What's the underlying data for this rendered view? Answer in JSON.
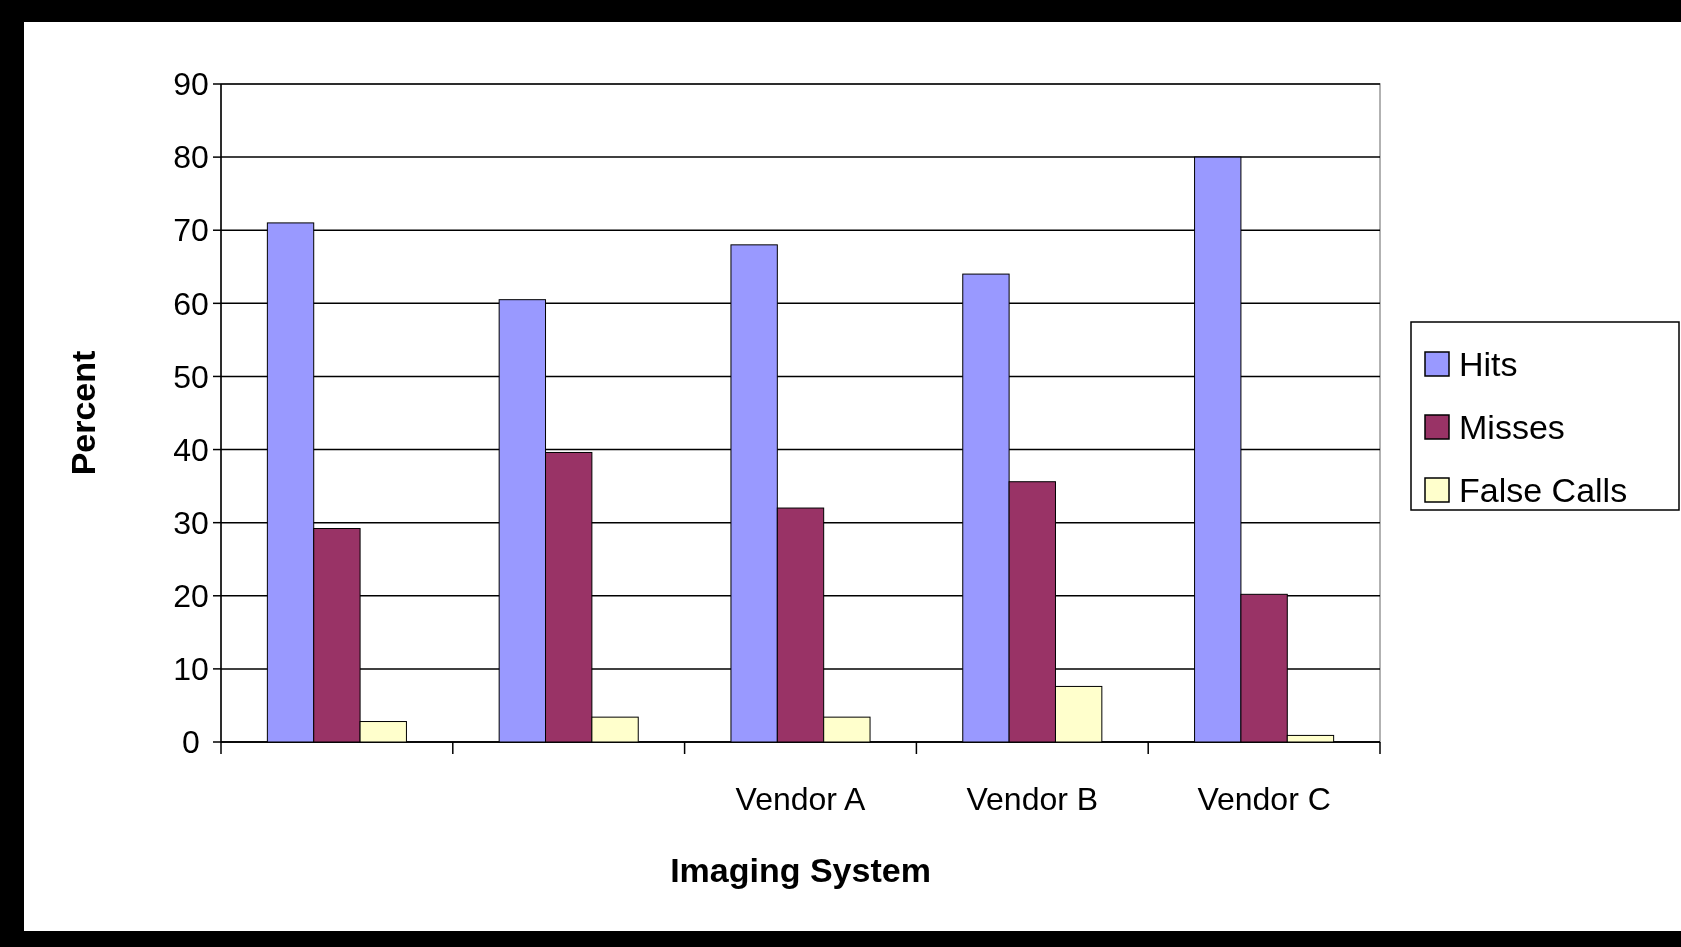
{
  "chart_data": {
    "type": "bar",
    "xlabel": "Imaging System",
    "ylabel": "Percent",
    "categories": [
      null,
      null,
      "Vendor A",
      "Vendor B",
      "Vendor C"
    ],
    "series": [
      {
        "name": "Hits",
        "color": "#9999ff",
        "values": [
          71,
          60.5,
          68,
          64,
          80
        ]
      },
      {
        "name": "Misses",
        "color": "#993366",
        "values": [
          29.2,
          39.6,
          32,
          35.6,
          20.2
        ]
      },
      {
        "name": "False Calls",
        "color": "#ffffcc",
        "values": [
          2.8,
          3.4,
          3.4,
          7.6,
          0.9
        ]
      }
    ],
    "ylim": [
      0,
      90
    ],
    "yticks": [
      0,
      10,
      20,
      30,
      40,
      50,
      60,
      70,
      80,
      90
    ],
    "grid": "y",
    "legend": "right"
  }
}
